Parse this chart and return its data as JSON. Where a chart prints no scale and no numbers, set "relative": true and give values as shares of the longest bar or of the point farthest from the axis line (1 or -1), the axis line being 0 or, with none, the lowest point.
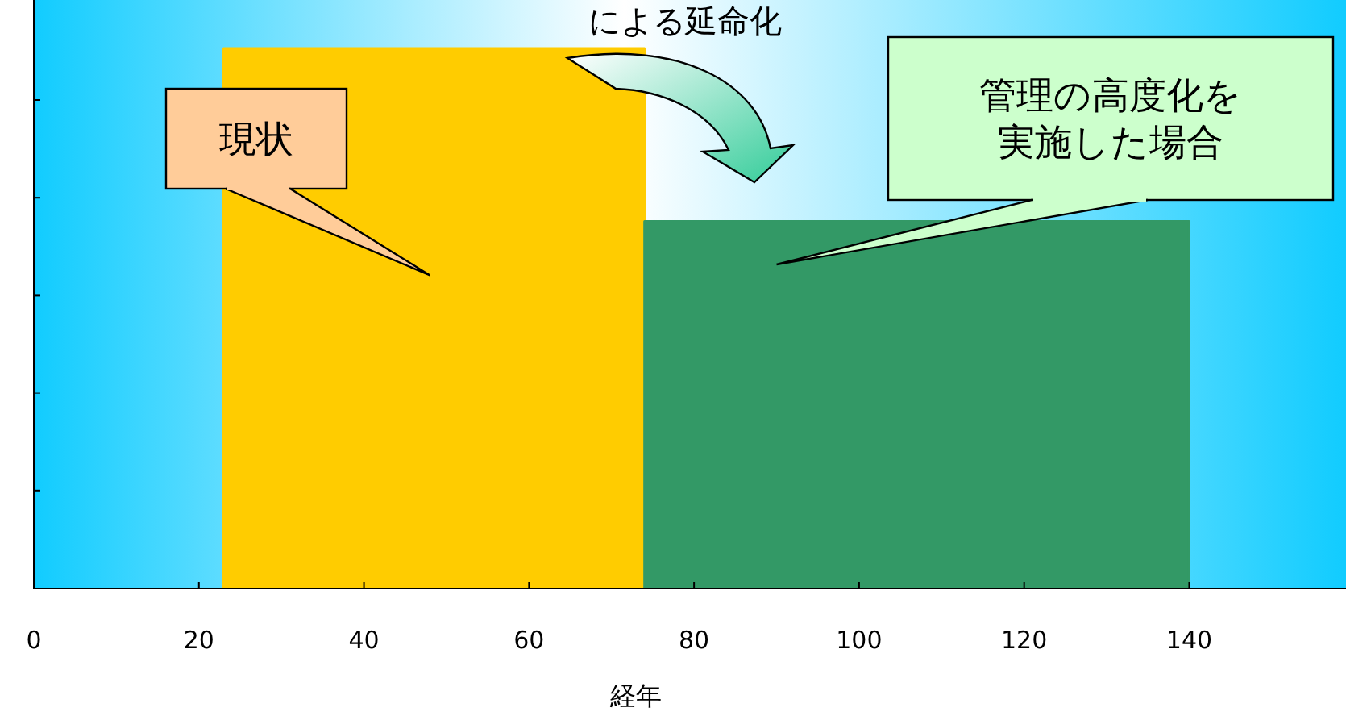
{
  "chart_data": {
    "type": "area",
    "title": "による延命化",
    "xlabel": "経年",
    "relative": true,
    "xlim": [
      0,
      159
    ],
    "xticks": [
      0,
      20,
      40,
      60,
      80,
      100,
      120,
      140
    ],
    "grid": false,
    "series": [
      {
        "color": "#ffcc00",
        "x": [
          23,
          23,
          74,
          74
        ],
        "values": [
          0,
          1,
          1,
          0
        ]
      },
      {
        "color": "#339966",
        "x": [
          74,
          74,
          140,
          140
        ],
        "values": [
          0,
          0.68,
          0.68,
          0
        ]
      }
    ],
    "annotations": [
      "現状",
      "管理の高度化を実施した場合"
    ]
  }
}
